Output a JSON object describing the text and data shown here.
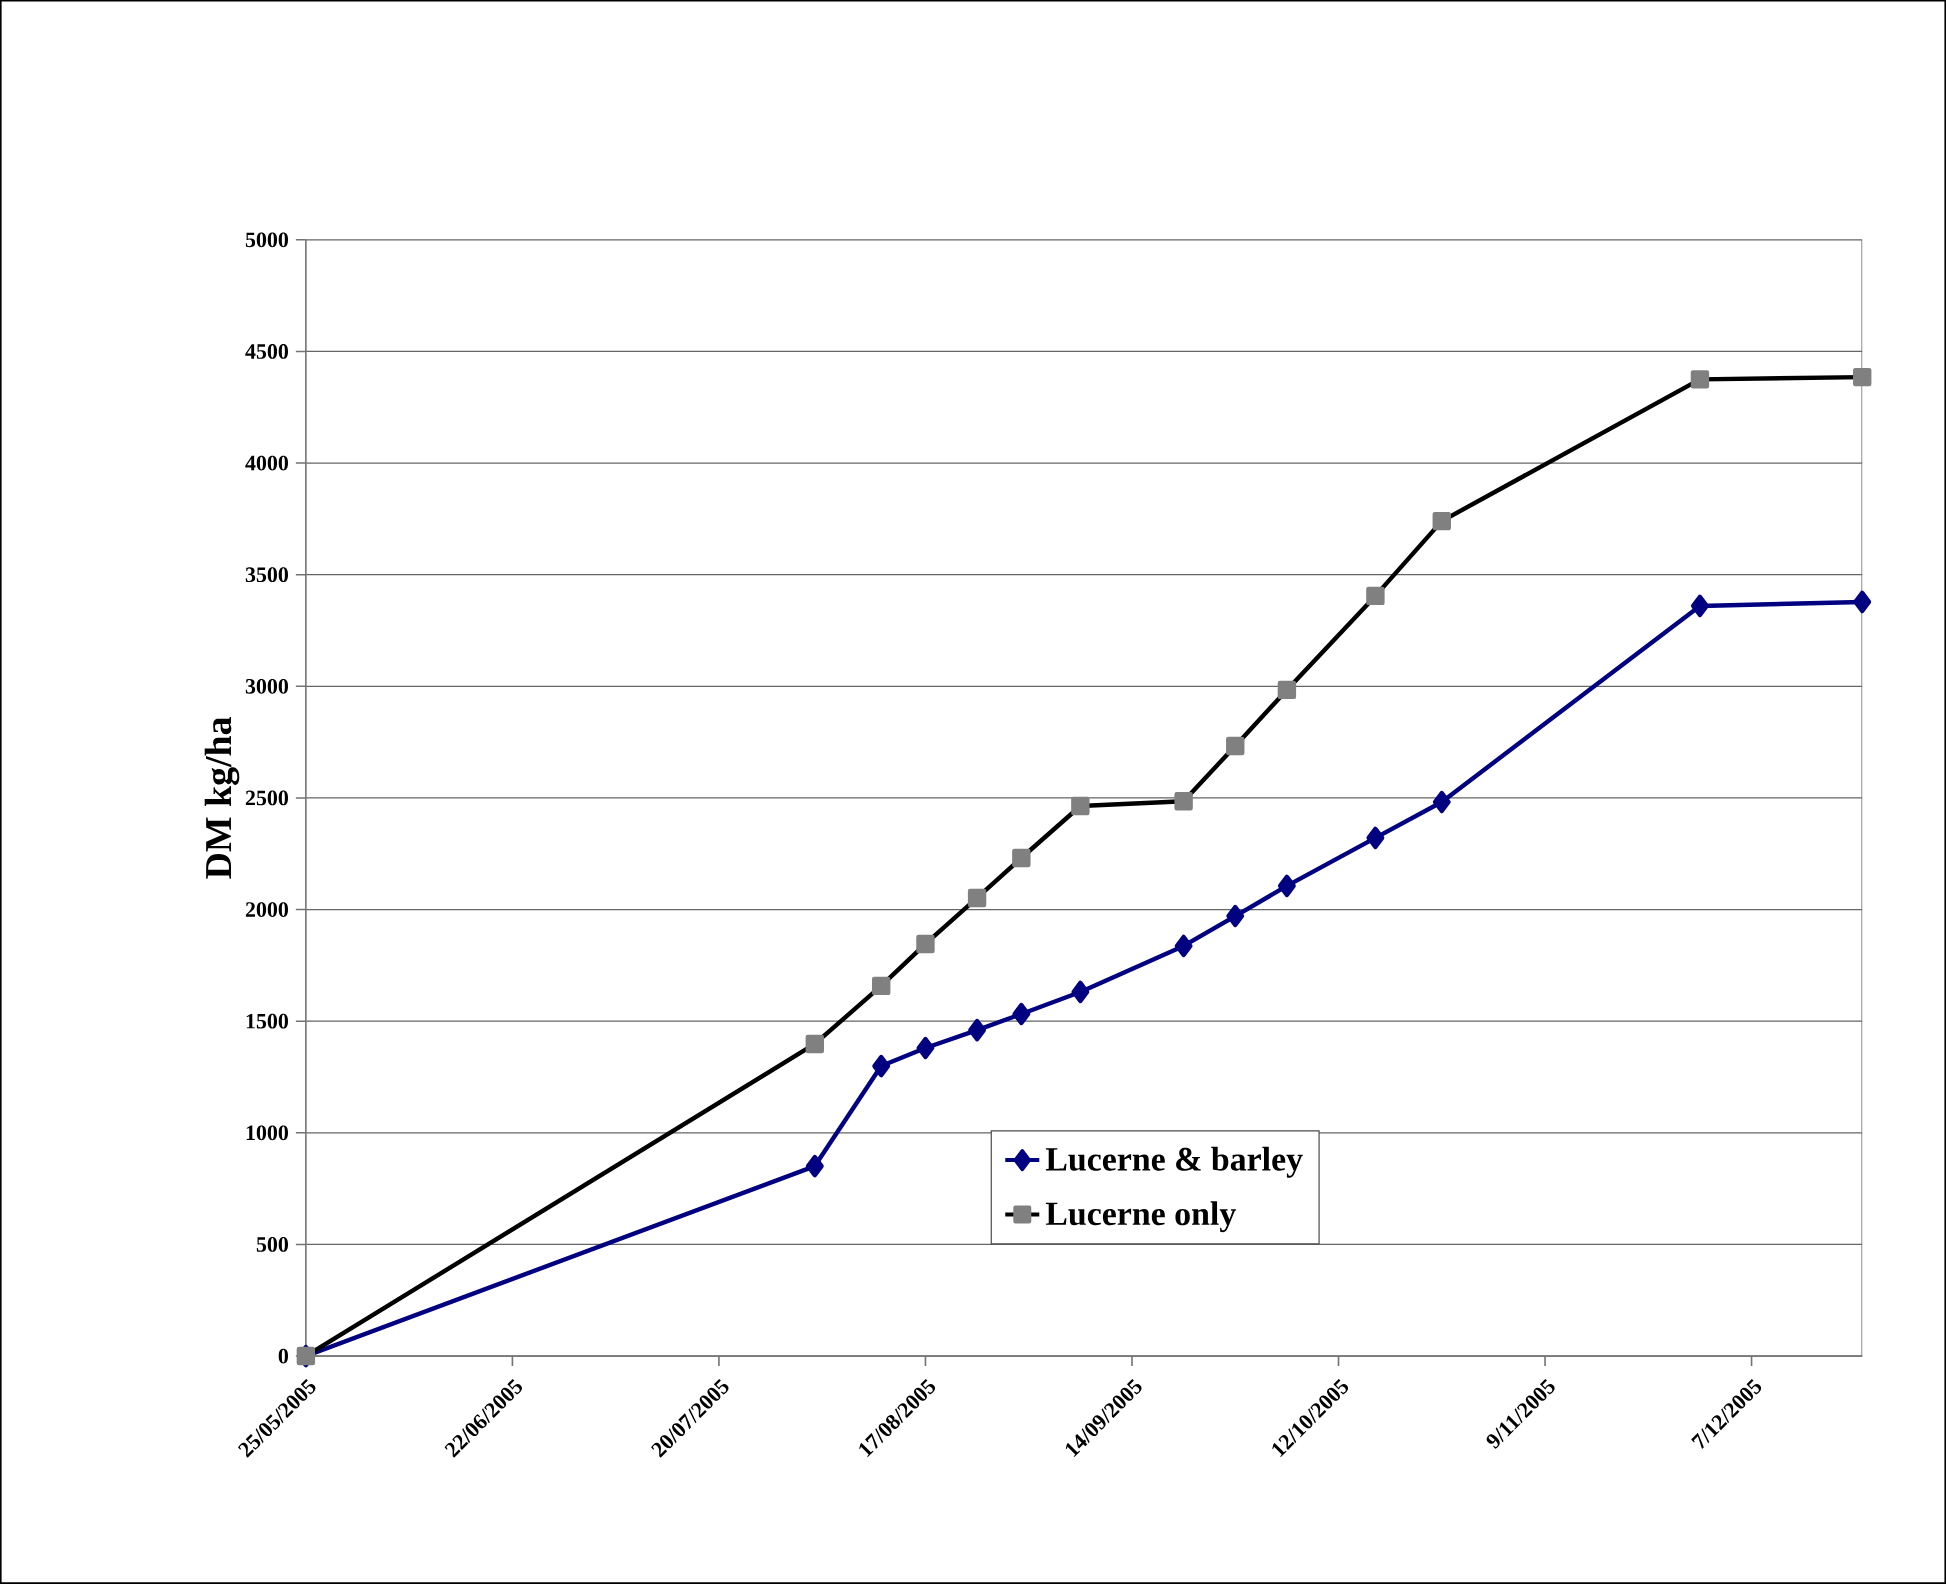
{
  "chart_data": {
    "type": "line",
    "ylabel": "DM kg/ha",
    "x": [
      "2005-05-25",
      "2005-08-02",
      "2005-08-11",
      "2005-08-17",
      "2005-08-24",
      "2005-08-30",
      "2005-09-07",
      "2005-09-21",
      "2005-09-28",
      "2005-10-05",
      "2005-10-17",
      "2005-10-26",
      "2005-11-30",
      "2005-12-22"
    ],
    "series": [
      {
        "name": "Lucerne & barley",
        "color": "#000080",
        "marker": "diamond",
        "values": [
          0,
          851,
          1299,
          1380,
          1460,
          1532,
          1631,
          1837,
          1971,
          2106,
          2321,
          2482,
          3360,
          3378
        ]
      },
      {
        "name": "Lucerne only",
        "color": "#000000",
        "marker": "square",
        "values": [
          0,
          1398,
          1658,
          1846,
          2052,
          2231,
          2464,
          2485,
          2733,
          2984,
          3405,
          3740,
          4375,
          4385
        ]
      }
    ],
    "xlim": [
      "2005-05-25",
      "2005-12-22"
    ],
    "xticks": [
      {
        "value": "2005-05-25",
        "label": "25/05/2005"
      },
      {
        "value": "2005-06-22",
        "label": "22/06/2005"
      },
      {
        "value": "2005-07-20",
        "label": "20/07/2005"
      },
      {
        "value": "2005-08-17",
        "label": "17/08/2005"
      },
      {
        "value": "2005-09-14",
        "label": "14/09/2005"
      },
      {
        "value": "2005-10-12",
        "label": "12/10/2005"
      },
      {
        "value": "2005-11-09",
        "label": "9/11/2005"
      },
      {
        "value": "2005-12-07",
        "label": "7/12/2005"
      }
    ],
    "ylim": [
      0,
      5000
    ],
    "yticks": [
      0,
      500,
      1000,
      1500,
      2000,
      2500,
      3000,
      3500,
      4000,
      4500,
      5000
    ],
    "grid": "y",
    "legend": "bottom right",
    "line_style": "solid"
  }
}
